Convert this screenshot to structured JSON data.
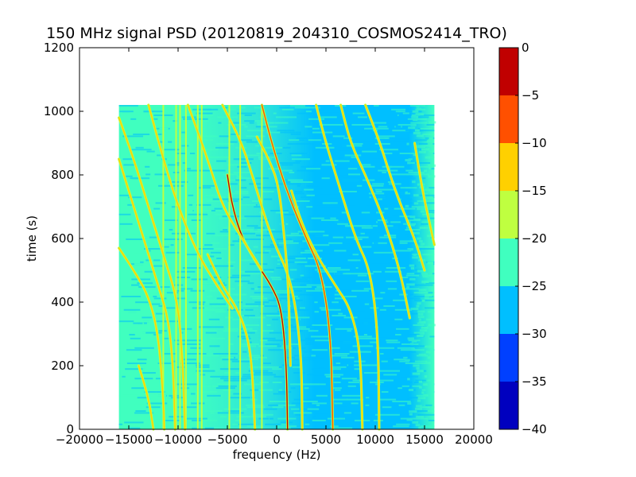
{
  "chart_data": {
    "type": "heatmap",
    "title": "150 MHz signal PSD (20120819_204310_COSMOS2414_TRO)",
    "xlabel": "frequency (Hz)",
    "ylabel": "time (s)",
    "xlim": [
      -20000,
      20000
    ],
    "ylim": [
      0,
      1200
    ],
    "xticks": [
      -20000,
      -15000,
      -10000,
      -5000,
      0,
      5000,
      10000,
      15000,
      20000
    ],
    "yticks": [
      0,
      200,
      400,
      600,
      800,
      1000,
      1200
    ],
    "data_extent": {
      "x": [
        -16000,
        16000
      ],
      "y": [
        0,
        1020
      ]
    },
    "colorbar": {
      "range": [
        -40,
        0
      ],
      "levels": [
        -40,
        -35,
        -30,
        -25,
        -20,
        -15,
        -10,
        -5,
        0
      ],
      "ticks": [
        0,
        -5,
        -10,
        -15,
        -20,
        -25,
        -30,
        -35,
        -40
      ],
      "colors": [
        "#0000bf",
        "#0040ff",
        "#00bfff",
        "#40ffbf",
        "#bfff40",
        "#ffd000",
        "#ff5000",
        "#c00000"
      ]
    },
    "background_level_left": -22.5,
    "background_level_right": -27.5,
    "vertical_lines_hz": [
      -11500,
      -10200,
      -9800,
      -9200,
      -8000,
      -7600,
      -4800,
      -3700,
      -1500
    ],
    "signal_tracks": [
      {
        "peak": -12,
        "points": [
          [
            -5500,
            1020
          ],
          [
            -3500,
            900
          ],
          [
            -2000,
            750
          ],
          [
            -500,
            600
          ],
          [
            1500,
            470
          ],
          [
            2500,
            250
          ],
          [
            2600,
            0
          ]
        ]
      },
      {
        "peak": -8,
        "points": [
          [
            -1500,
            1020
          ],
          [
            -500,
            900
          ],
          [
            1000,
            750
          ],
          [
            3000,
            600
          ],
          [
            4500,
            500
          ],
          [
            5500,
            300
          ],
          [
            5700,
            0
          ]
        ]
      },
      {
        "peak": -5,
        "points": [
          [
            -5000,
            800
          ],
          [
            -4500,
            700
          ],
          [
            -3500,
            600
          ],
          [
            -2000,
            520
          ],
          [
            -500,
            450
          ],
          [
            500,
            380
          ],
          [
            1000,
            200
          ],
          [
            1100,
            0
          ]
        ]
      },
      {
        "peak": -15,
        "points": [
          [
            4000,
            1020
          ],
          [
            5000,
            900
          ],
          [
            6500,
            750
          ],
          [
            8000,
            600
          ],
          [
            9500,
            500
          ],
          [
            10300,
            300
          ],
          [
            10400,
            0
          ]
        ]
      },
      {
        "peak": -12,
        "points": [
          [
            1500,
            750
          ],
          [
            2500,
            650
          ],
          [
            4000,
            550
          ],
          [
            6000,
            450
          ],
          [
            7500,
            380
          ],
          [
            8500,
            250
          ],
          [
            8700,
            0
          ]
        ]
      },
      {
        "peak": -15,
        "points": [
          [
            6500,
            1020
          ],
          [
            7500,
            900
          ],
          [
            9000,
            800
          ],
          [
            11000,
            650
          ],
          [
            12500,
            500
          ],
          [
            13500,
            350
          ]
        ]
      },
      {
        "peak": -15,
        "points": [
          [
            -16000,
            570
          ],
          [
            -14500,
            500
          ],
          [
            -13000,
            420
          ],
          [
            -12000,
            300
          ],
          [
            -11500,
            100
          ],
          [
            -11400,
            0
          ]
        ]
      },
      {
        "peak": -15,
        "points": [
          [
            -16000,
            980
          ],
          [
            -14500,
            850
          ],
          [
            -13000,
            700
          ],
          [
            -11500,
            550
          ],
          [
            -10000,
            400
          ],
          [
            -9500,
            200
          ],
          [
            -9300,
            0
          ]
        ]
      },
      {
        "peak": -15,
        "points": [
          [
            -13000,
            1020
          ],
          [
            -11500,
            850
          ],
          [
            -10000,
            700
          ],
          [
            -8000,
            550
          ],
          [
            -6000,
            450
          ],
          [
            -4500,
            380
          ]
        ]
      },
      {
        "peak": -15,
        "points": [
          [
            -9000,
            1020
          ],
          [
            -7000,
            850
          ],
          [
            -5500,
            700
          ],
          [
            -3500,
            600
          ],
          [
            -1500,
            500
          ]
        ]
      },
      {
        "peak": -15,
        "points": [
          [
            -7000,
            550
          ],
          [
            -5500,
            450
          ],
          [
            -4000,
            380
          ],
          [
            -3000,
            300
          ],
          [
            -2500,
            200
          ],
          [
            -2200,
            0
          ]
        ]
      },
      {
        "peak": -15,
        "points": [
          [
            -2000,
            920
          ],
          [
            -800,
            850
          ],
          [
            200,
            770
          ],
          [
            800,
            600
          ],
          [
            1200,
            450
          ],
          [
            1400,
            200
          ]
        ]
      },
      {
        "peak": -15,
        "points": [
          [
            9000,
            1020
          ],
          [
            10500,
            900
          ],
          [
            12000,
            750
          ],
          [
            14000,
            600
          ],
          [
            15000,
            500
          ]
        ]
      },
      {
        "peak": -15,
        "points": [
          [
            14000,
            900
          ],
          [
            14800,
            750
          ],
          [
            15500,
            650
          ],
          [
            16000,
            580
          ]
        ]
      },
      {
        "peak": -15,
        "points": [
          [
            -16000,
            850
          ],
          [
            -14500,
            700
          ],
          [
            -13000,
            550
          ],
          [
            -12000,
            450
          ],
          [
            -11000,
            350
          ],
          [
            -10500,
            200
          ],
          [
            -10300,
            0
          ]
        ]
      },
      {
        "peak": -15,
        "points": [
          [
            -14000,
            200
          ],
          [
            -13000,
            100
          ],
          [
            -12500,
            0
          ]
        ]
      }
    ]
  }
}
